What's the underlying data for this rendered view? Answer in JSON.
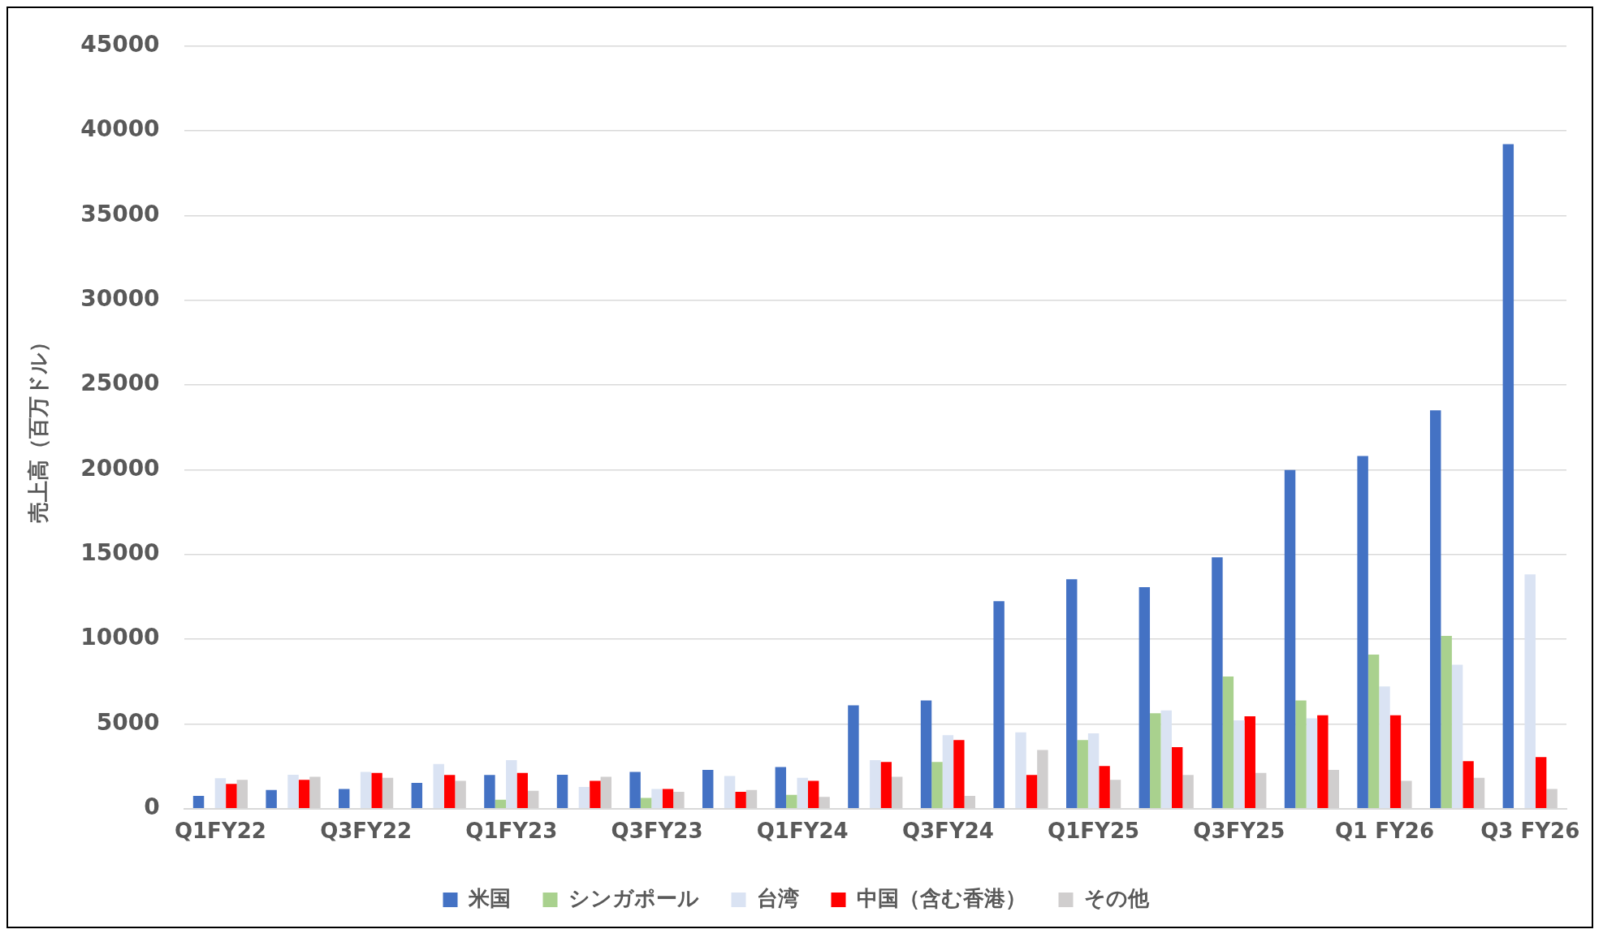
{
  "chart_data": {
    "type": "bar",
    "ylabel": "売上高（百万ドル）",
    "categories": [
      "Q1FY22",
      null,
      "Q3FY22",
      null,
      "Q1FY23",
      null,
      "Q3FY23",
      null,
      "Q1FY24",
      null,
      "Q3FY24",
      null,
      "Q1FY25",
      null,
      "Q3FY25",
      null,
      "Q1 FY26",
      null,
      "Q3 FY26"
    ],
    "series": [
      {
        "name": "米国",
        "color": "#4472c4",
        "values": [
          760,
          1100,
          1170,
          1520,
          1990,
          2000,
          2170,
          2290,
          2460,
          6100,
          6390,
          12250,
          13540,
          13070,
          14830,
          19990,
          20810,
          23510,
          39220
        ]
      },
      {
        "name": "シンガポール",
        "color": "#a9d18e",
        "values": [
          null,
          null,
          null,
          null,
          530,
          null,
          640,
          null,
          820,
          null,
          2760,
          null,
          4050,
          5630,
          7800,
          6390,
          9090,
          10200,
          null
        ]
      },
      {
        "name": "台湾",
        "color": "#dae3f3",
        "values": [
          1800,
          2000,
          2170,
          2640,
          2870,
          1290,
          1170,
          1930,
          1820,
          2870,
          4340,
          4510,
          4450,
          5800,
          5220,
          5330,
          7210,
          8500,
          13830
        ]
      },
      {
        "name": "中国（含む香港）",
        "color": "#ff0000",
        "values": [
          1470,
          1700,
          2110,
          1990,
          2110,
          1640,
          1170,
          1000,
          1640,
          2760,
          4050,
          1990,
          2520,
          3630,
          5450,
          5510,
          5510,
          2810,
          3050
        ]
      },
      {
        "name": "その他",
        "color": "#d0cece",
        "values": [
          1700,
          1880,
          1820,
          1640,
          1060,
          1880,
          1000,
          1110,
          700,
          1880,
          760,
          3460,
          1700,
          1990,
          2110,
          2290,
          1640,
          1820,
          1170
        ]
      }
    ],
    "ylim": [
      0,
      45000
    ],
    "yticks": [
      0,
      5000,
      10000,
      15000,
      20000,
      25000,
      30000,
      35000,
      40000,
      45000
    ],
    "grid": "y",
    "legend": "bottom"
  }
}
